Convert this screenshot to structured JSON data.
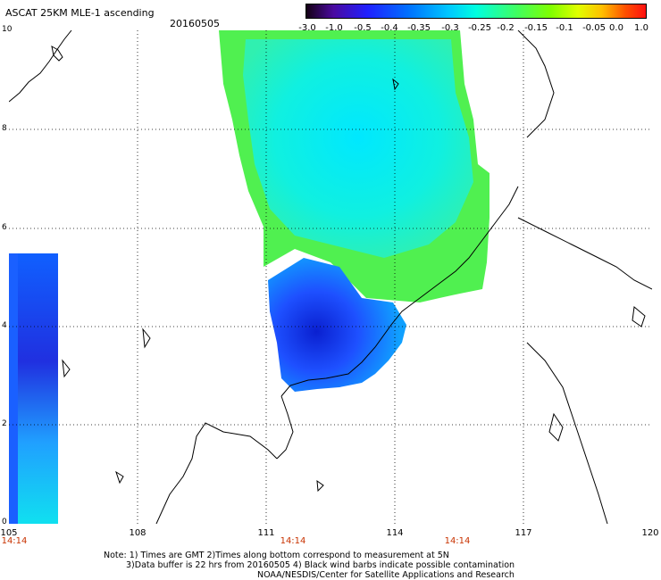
{
  "header": {
    "title": "ASCAT 25KM MLE-1 ascending",
    "date": "20160505"
  },
  "colorbar": {
    "labels": [
      "-3.0",
      "-1.0",
      "-0.5",
      "-0.4",
      "-0.35",
      "-0.3",
      "-0.25",
      "-0.2",
      "-0.15",
      "-0.1",
      "-0.05",
      "0.0",
      "1.0"
    ]
  },
  "axes": {
    "lon_labels": [
      "105",
      "108",
      "111",
      "114",
      "117",
      "120"
    ],
    "lat_labels": [
      "10",
      "8",
      "6",
      "4",
      "2",
      "0"
    ],
    "lon_range": [
      105,
      120
    ],
    "lat_range": [
      0,
      10
    ],
    "grid": "dotted"
  },
  "time_labels": [
    "14:14",
    "14:14",
    "14:14"
  ],
  "notes": {
    "line1": "Note: 1) Times are GMT 2)Times along bottom correspond to measurement at 5N",
    "line2": "3)Data buffer is 22 hrs from 20160505 4) Black wind barbs indicate possible contamination",
    "line3": "NOAA/NESDIS/Center for Satellite Applications and Research"
  },
  "colors": {
    "swath_low": "#2040ff",
    "swath_mid": "#00ffe0",
    "swath_high": "#40ff40",
    "time_label": "#c83200"
  }
}
